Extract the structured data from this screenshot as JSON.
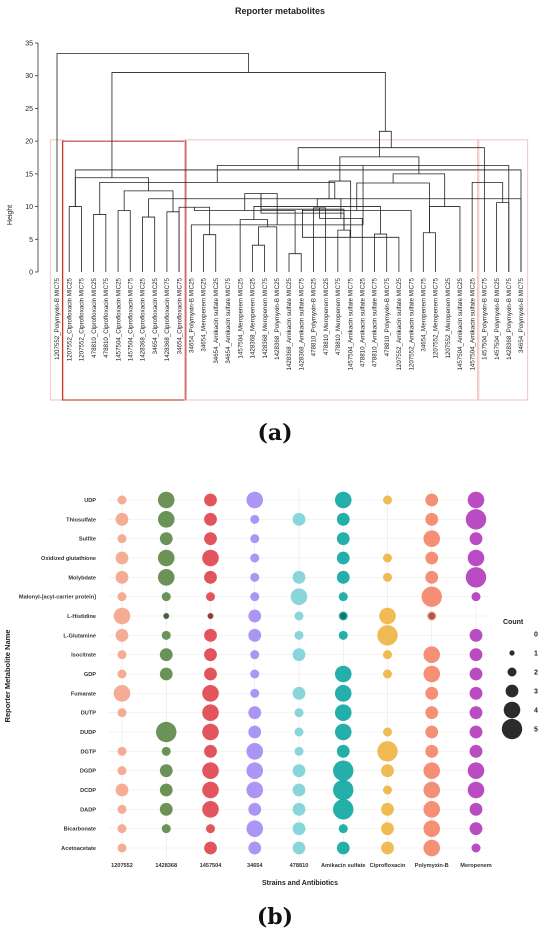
{
  "chart_data": [
    {
      "type": "dendrogram",
      "title": "Reporter metabolites",
      "ylabel": "Height",
      "ylim": [
        0,
        35
      ],
      "yticks": [
        0,
        5,
        10,
        15,
        20,
        25,
        30,
        35
      ],
      "leaves": [
        "1207552_Polymyxin-B MIC75",
        "1207552_Ciprofloxacin MIC25",
        "1207552_Ciprofloxacin MIC75",
        "478810_Ciprofloxacin MIC25",
        "478810_Ciprofloxacin MIC75",
        "1457504_Ciprofloxacin MIC25",
        "1457504_Ciprofloxacin MIC75",
        "1428368_Ciprofloxacin MIC25",
        "34654_Ciprofloxacin MIC25",
        "1428368_Ciprofloxacin MIC75",
        "34654_Ciprofloxacin MIC75",
        "34654_Polymyxin-B MIC25",
        "34654_Meropenem MIC25",
        "34654_Amikacin sulfate MIC25",
        "34654_Amikacin sulfate MIC75",
        "1457504_Meropenem MIC25",
        "1428368_Meropenem MIC25",
        "1428368_Meropenem MIC75",
        "1428368_Polymyxin-B MIC25",
        "1428368_Amikacin sulfate MIC25",
        "1428368_Amikacin sulfate MIC75",
        "478810_Polymyxin-B MIC25",
        "478810_Meropenem MIC25",
        "478810_Meropenem MIC75",
        "1457504_Amikacin sulfate MIC75",
        "478810_Amikacin sulfate MIC25",
        "478810_Amikacin sulfate MIC75",
        "478810_Polymyxin-B MIC75",
        "1207552_Amikacin sulfate MIC25",
        "1207552_Amikacin sulfate MIC75",
        "34654_Meropenem MIC75",
        "1207552_Meropenem MIC75",
        "1207552_Meropenem MIC25",
        "1457504_Amikacin sulfate MIC25",
        "1457504_Amikacin sulfate MIC25",
        "1457504_Polymyxin-B MIC75",
        "1457504_Polymyxin-B MIC25",
        "1428368_Polymyxin-B MIC75",
        "34654_Polymyxin-B MIC75"
      ],
      "merges": [
        [
          2,
          3,
          10.0
        ],
        [
          4,
          5,
          8.8
        ],
        [
          6,
          7,
          9.4
        ],
        [
          8,
          9,
          8.4
        ],
        [
          10,
          11,
          9.2
        ],
        [
          39,
          43,
          11.2
        ],
        [
          42,
          44,
          12.4
        ],
        [
          41,
          45,
          13.7
        ],
        [
          40,
          46,
          14.4
        ],
        [
          38,
          47,
          16.3
        ],
        [
          13,
          14,
          5.7
        ],
        [
          12,
          49,
          7.2
        ],
        [
          11,
          50,
          9.9
        ],
        [
          17,
          18,
          4.1
        ],
        [
          20,
          21,
          2.8
        ],
        [
          19,
          53,
          6.9
        ],
        [
          52,
          54,
          9.4
        ],
        [
          16,
          55,
          8.0
        ],
        [
          51,
          56,
          12.0
        ],
        [
          22,
          23,
          9.8
        ],
        [
          24,
          25,
          6.4
        ],
        [
          27,
          28,
          5.8
        ],
        [
          26,
          59,
          8.2
        ],
        [
          60,
          58,
          9.0
        ],
        [
          58,
          60,
          9.6
        ],
        [
          57,
          61,
          10.0
        ],
        [
          31,
          32,
          6.0
        ],
        [
          30,
          63,
          9.4
        ],
        [
          29,
          64,
          5.3
        ],
        [
          62,
          65,
          11.2
        ],
        [
          66,
          34,
          10.0
        ],
        [
          67,
          66,
          13.6
        ],
        [
          68,
          69,
          13.9
        ],
        [
          70,
          71,
          15.0
        ],
        [
          72,
          73,
          17.6
        ],
        [
          37,
          38,
          10.6
        ],
        [
          39,
          40,
          15.6
        ],
        [
          35,
          75,
          13.7
        ],
        [
          36,
          76,
          19.0
        ],
        [
          74,
          78,
          21.5
        ],
        [
          48,
          79,
          30.5
        ],
        [
          1,
          80,
          33.4
        ]
      ],
      "box_color": "#c0392b",
      "highlight_box_color": "#f1b3b3"
    },
    {
      "type": "bubble",
      "xlabel": "Strains and Antibiotics",
      "ylabel": "Reporter Metabolite Name",
      "categories": [
        "1207552",
        "1428368",
        "1457504",
        "34654",
        "478810",
        "Amikacin sulfate",
        "Ciprofloxacin",
        "Polymyxin-B",
        "Meropenem"
      ],
      "colors": [
        "#f4a58c",
        "#5e8a4a",
        "#e0474f",
        "#a48cf4",
        "#7ed3d8",
        "#12a8a3",
        "#f0b544",
        "#f4866a",
        "#b43dbe"
      ],
      "metabolites": [
        "UDP",
        "Thiosulfate",
        "Sulfite",
        "Oxidized glutathione",
        "Molybdate",
        "Malonyl-[acyl-carrier protein]",
        "L-Histidine",
        "L-Glutamine",
        "Isocitrate",
        "GDP",
        "Fumarate",
        "DUTP",
        "DUDP",
        "DGTP",
        "DGDP",
        "DCDP",
        "DADP",
        "Bicarbonate",
        "Acetoacetate"
      ],
      "counts": [
        [
          2,
          4,
          3,
          4,
          0,
          4,
          2,
          3,
          4
        ],
        [
          3,
          4,
          3,
          2,
          3,
          3,
          0,
          3,
          5
        ],
        [
          2,
          3,
          3,
          2,
          0,
          3,
          0,
          4,
          3
        ],
        [
          3,
          4,
          4,
          2,
          0,
          3,
          2,
          3,
          4
        ],
        [
          3,
          4,
          3,
          2,
          3,
          3,
          2,
          3,
          5
        ],
        [
          2,
          2,
          2,
          2,
          4,
          2,
          0,
          5,
          2
        ],
        [
          4,
          1,
          1,
          3,
          2,
          2,
          4,
          2,
          0
        ],
        [
          3,
          2,
          3,
          3,
          2,
          2,
          5,
          0,
          3
        ],
        [
          2,
          3,
          3,
          2,
          3,
          0,
          2,
          4,
          3
        ],
        [
          2,
          3,
          3,
          2,
          0,
          4,
          2,
          4,
          3
        ],
        [
          4,
          0,
          4,
          2,
          3,
          4,
          0,
          3,
          3
        ],
        [
          2,
          0,
          4,
          3,
          2,
          4,
          0,
          3,
          3
        ],
        [
          0,
          5,
          4,
          3,
          2,
          4,
          2,
          3,
          3
        ],
        [
          2,
          2,
          3,
          4,
          2,
          3,
          5,
          3,
          3
        ],
        [
          2,
          3,
          4,
          4,
          3,
          5,
          3,
          4,
          4
        ],
        [
          3,
          3,
          4,
          4,
          3,
          5,
          2,
          4,
          4
        ],
        [
          2,
          3,
          4,
          3,
          3,
          5,
          3,
          4,
          3
        ],
        [
          2,
          2,
          2,
          4,
          3,
          2,
          3,
          4,
          3
        ],
        [
          2,
          0,
          3,
          3,
          3,
          3,
          3,
          4,
          2
        ]
      ],
      "dark_dots": [
        [
          6,
          1
        ],
        [
          6,
          2
        ],
        [
          6,
          5
        ],
        [
          6,
          7
        ]
      ],
      "legend": {
        "title": "Count",
        "values": [
          0,
          1,
          2,
          3,
          4,
          5
        ],
        "placement": "right"
      }
    }
  ],
  "panel_labels": [
    "(a)",
    "(b)"
  ]
}
